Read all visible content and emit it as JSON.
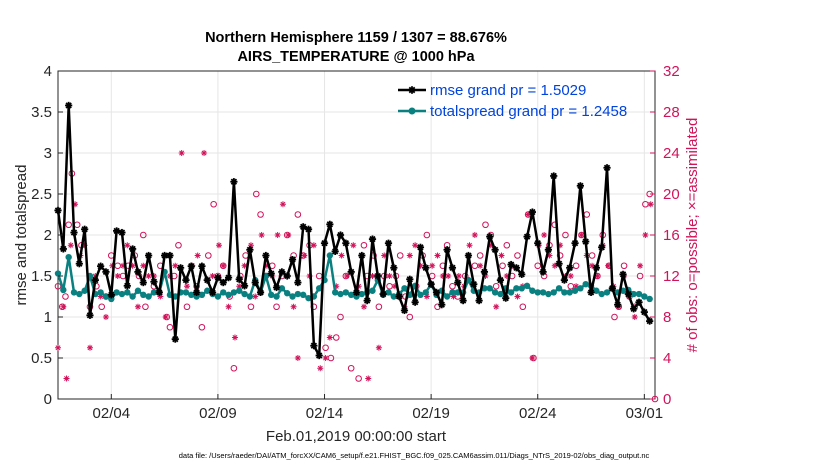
{
  "chart_data": {
    "type": "line",
    "title_line1": "Northern Hemisphere 1159 / 1307 = 88.676%",
    "title_line2": "AIRS_TEMPERATURE @ 1000 hPa",
    "xlabel": "Feb.01,2019 00:00:00 start",
    "ylabel_left": "rmse and totalspread",
    "ylabel_right": "# of obs: o=possible; ×=assimilated",
    "footnote": "data file: /Users/raeder/DAI/ATM_forcXX/CAM6_setup/f.e21.FHIST_BGC.f09_025.CAM6assim.011/Diags_NTrS_2019-02/obs_diag_output.nc",
    "xlim": [
      0.5,
      28.5
    ],
    "ylim_left": [
      0,
      4
    ],
    "ylim_right": [
      0,
      32
    ],
    "x_ticks": [
      {
        "value": 3,
        "label": "02/04"
      },
      {
        "value": 8,
        "label": "02/09"
      },
      {
        "value": 13,
        "label": "02/14"
      },
      {
        "value": 18,
        "label": "02/19"
      },
      {
        "value": 23,
        "label": "02/24"
      },
      {
        "value": 28,
        "label": "03/01"
      }
    ],
    "y_ticks_left": [
      "0",
      "0.5",
      "1",
      "1.5",
      "2",
      "2.5",
      "3",
      "3.5",
      "4"
    ],
    "y_ticks_right": [
      "0",
      "4",
      "8",
      "12",
      "16",
      "20",
      "24",
      "28",
      "32"
    ],
    "legend": [
      {
        "name": "rmse grand pr = 1.5029",
        "color": "#000000"
      },
      {
        "name": "totalspread grand pr = 1.2458",
        "color": "#0a8080"
      }
    ],
    "series": [
      {
        "name": "rmse",
        "color": "#000000",
        "x_start": 0.5,
        "x_step": 0.25,
        "values": [
          2.3,
          1.83,
          3.58,
          2.03,
          1.65,
          2.07,
          1.02,
          1.45,
          1.62,
          1.55,
          1.27,
          2.05,
          2.03,
          1.38,
          1.83,
          1.55,
          1.42,
          1.75,
          1.43,
          1.3,
          1.75,
          1.75,
          0.73,
          1.6,
          1.45,
          1.62,
          1.3,
          1.62,
          1.45,
          1.3,
          1.48,
          1.42,
          1.48,
          2.65,
          1.46,
          1.38,
          1.82,
          1.42,
          1.3,
          1.75,
          1.53,
          1.36,
          1.55,
          1.5,
          1.7,
          1.42,
          2.1,
          2.07,
          0.65,
          0.53,
          1.9,
          2.13,
          1.8,
          2.0,
          1.9,
          1.55,
          1.3,
          1.75,
          1.2,
          1.95,
          1.5,
          1.28,
          1.9,
          1.6,
          1.25,
          1.08,
          1.46,
          1.18,
          1.85,
          1.6,
          1.4,
          1.3,
          1.15,
          1.82,
          1.6,
          1.42,
          1.2,
          1.75,
          1.4,
          1.2,
          1.55,
          1.98,
          1.82,
          1.45,
          1.23,
          1.64,
          1.6,
          1.52,
          1.98,
          2.28,
          1.9,
          1.55,
          1.82,
          2.72,
          1.65,
          1.45,
          1.6,
          1.9,
          2.6,
          1.92,
          1.3,
          1.6,
          1.85,
          2.82,
          1.35,
          1.15,
          1.52,
          1.28,
          1.1,
          1.18,
          1.06,
          0.95
        ]
      },
      {
        "name": "totalspread",
        "color": "#0a8080",
        "x_start": 0.5,
        "x_step": 0.25,
        "values": [
          1.53,
          1.33,
          1.73,
          1.3,
          1.28,
          1.32,
          1.5,
          1.28,
          1.3,
          1.25,
          1.22,
          1.3,
          1.28,
          1.3,
          1.25,
          1.32,
          1.27,
          1.25,
          1.3,
          1.3,
          1.55,
          1.27,
          1.25,
          1.3,
          1.3,
          1.27,
          1.25,
          1.27,
          1.32,
          1.28,
          1.25,
          1.3,
          1.27,
          1.3,
          1.32,
          1.28,
          1.25,
          1.45,
          1.3,
          1.5,
          1.27,
          1.25,
          1.35,
          1.29,
          1.25,
          1.28,
          1.27,
          1.23,
          1.25,
          1.35,
          1.45,
          1.75,
          1.3,
          1.28,
          1.3,
          1.27,
          1.25,
          1.28,
          1.3,
          1.32,
          1.45,
          1.27,
          1.3,
          1.25,
          1.28,
          1.35,
          1.27,
          1.38,
          1.27,
          1.3,
          1.4,
          1.27,
          1.32,
          1.25,
          1.3,
          1.3,
          1.3,
          1.45,
          1.32,
          1.3,
          1.35,
          1.35,
          1.3,
          1.28,
          1.35,
          1.3,
          1.35,
          1.35,
          1.38,
          1.32,
          1.3,
          1.3,
          1.28,
          1.3,
          1.35,
          1.3,
          1.3,
          1.32,
          1.35,
          1.4,
          1.38,
          1.32,
          1.28,
          1.3,
          1.35,
          1.3,
          1.32,
          1.33,
          1.28,
          1.28,
          1.25,
          1.22
        ]
      }
    ],
    "obs_possible": [
      [
        0.5,
        11
      ],
      [
        0.7,
        9
      ],
      [
        0.85,
        10
      ],
      [
        1.0,
        17
      ],
      [
        1.15,
        22
      ],
      [
        1.4,
        17
      ],
      [
        1.6,
        15
      ],
      [
        2.0,
        9
      ],
      [
        2.3,
        11
      ],
      [
        2.55,
        9
      ],
      [
        2.75,
        10
      ],
      [
        3.0,
        14
      ],
      [
        3.3,
        13
      ],
      [
        3.55,
        12
      ],
      [
        3.8,
        13
      ],
      [
        4.1,
        14
      ],
      [
        4.3,
        12
      ],
      [
        4.5,
        16
      ],
      [
        4.6,
        9
      ],
      [
        5.0,
        11
      ],
      [
        5.3,
        13
      ],
      [
        5.6,
        8
      ],
      [
        5.75,
        7
      ],
      [
        5.95,
        12
      ],
      [
        6.15,
        15
      ],
      [
        6.55,
        9
      ],
      [
        7.0,
        11
      ],
      [
        7.25,
        7
      ],
      [
        7.55,
        14
      ],
      [
        7.8,
        19
      ],
      [
        8.0,
        12
      ],
      [
        8.25,
        13
      ],
      [
        8.55,
        10
      ],
      [
        8.75,
        3
      ],
      [
        9.05,
        12
      ],
      [
        9.3,
        14
      ],
      [
        9.55,
        9
      ],
      [
        9.8,
        20
      ],
      [
        10.0,
        18
      ],
      [
        10.25,
        12
      ],
      [
        10.55,
        13
      ],
      [
        10.75,
        9
      ],
      [
        11.0,
        12
      ],
      [
        11.25,
        16
      ],
      [
        11.55,
        14
      ],
      [
        11.75,
        18
      ],
      [
        12.0,
        14
      ],
      [
        12.3,
        15
      ],
      [
        12.5,
        9
      ],
      [
        12.75,
        12
      ],
      [
        13.05,
        5
      ],
      [
        13.3,
        4
      ],
      [
        13.55,
        6
      ],
      [
        13.75,
        8
      ],
      [
        14.0,
        12
      ],
      [
        14.25,
        3
      ],
      [
        14.6,
        2
      ],
      [
        14.85,
        15
      ],
      [
        15.0,
        12
      ],
      [
        15.3,
        14
      ],
      [
        15.55,
        9
      ],
      [
        15.8,
        12
      ],
      [
        16.05,
        11
      ],
      [
        16.35,
        12
      ],
      [
        16.55,
        14
      ],
      [
        16.8,
        10
      ],
      [
        17.0,
        8
      ],
      [
        17.3,
        11
      ],
      [
        17.6,
        14
      ],
      [
        17.8,
        16
      ],
      [
        18.05,
        12
      ],
      [
        18.3,
        9
      ],
      [
        18.55,
        13
      ],
      [
        18.75,
        15
      ],
      [
        19.0,
        11
      ],
      [
        19.25,
        10
      ],
      [
        19.6,
        12
      ],
      [
        20.05,
        13
      ],
      [
        20.3,
        14
      ],
      [
        20.55,
        17
      ],
      [
        20.8,
        16
      ],
      [
        21.05,
        11
      ],
      [
        21.35,
        13
      ],
      [
        21.55,
        15
      ],
      [
        21.8,
        12
      ],
      [
        22.05,
        14
      ],
      [
        22.3,
        9
      ],
      [
        22.55,
        18
      ],
      [
        22.8,
        4
      ],
      [
        23.0,
        13
      ],
      [
        23.3,
        12
      ],
      [
        23.55,
        15
      ],
      [
        23.8,
        17
      ],
      [
        24.05,
        14
      ],
      [
        24.3,
        16
      ],
      [
        24.55,
        11
      ],
      [
        24.8,
        13
      ],
      [
        25.05,
        16
      ],
      [
        25.3,
        18
      ],
      [
        25.55,
        14
      ],
      [
        25.8,
        12
      ],
      [
        26.05,
        16
      ],
      [
        26.35,
        13
      ],
      [
        26.6,
        8
      ],
      [
        26.8,
        9
      ],
      [
        27.05,
        13
      ],
      [
        27.3,
        10
      ],
      [
        27.55,
        9
      ],
      [
        27.8,
        12
      ],
      [
        28.05,
        19
      ],
      [
        28.25,
        20
      ],
      [
        28.5,
        0
      ]
    ],
    "obs_assimilated": [
      [
        0.5,
        5
      ],
      [
        0.75,
        9
      ],
      [
        0.9,
        2
      ],
      [
        1.1,
        15
      ],
      [
        1.3,
        19
      ],
      [
        1.55,
        14
      ],
      [
        1.75,
        15
      ],
      [
        2.0,
        5
      ],
      [
        2.25,
        12
      ],
      [
        2.5,
        10
      ],
      [
        2.75,
        8
      ],
      [
        3.05,
        13
      ],
      [
        3.3,
        12
      ],
      [
        3.55,
        13
      ],
      [
        3.75,
        15
      ],
      [
        4.0,
        13
      ],
      [
        4.25,
        9
      ],
      [
        4.5,
        13
      ],
      [
        4.75,
        12
      ],
      [
        5.0,
        12
      ],
      [
        5.3,
        10
      ],
      [
        5.55,
        8
      ],
      [
        5.75,
        12
      ],
      [
        6.0,
        13
      ],
      [
        6.3,
        24
      ],
      [
        6.55,
        11
      ],
      [
        6.8,
        13
      ],
      [
        7.05,
        14
      ],
      [
        7.35,
        24
      ],
      [
        7.75,
        12
      ],
      [
        8.05,
        15
      ],
      [
        8.25,
        13
      ],
      [
        8.5,
        9
      ],
      [
        8.8,
        6
      ],
      [
        9.0,
        11
      ],
      [
        9.25,
        13
      ],
      [
        9.55,
        15
      ],
      [
        9.75,
        10
      ],
      [
        10.05,
        16
      ],
      [
        10.3,
        13
      ],
      [
        10.55,
        12
      ],
      [
        10.8,
        16
      ],
      [
        11.05,
        19
      ],
      [
        11.3,
        16
      ],
      [
        11.55,
        9
      ],
      [
        11.75,
        4
      ],
      [
        12.05,
        14
      ],
      [
        12.3,
        12
      ],
      [
        12.5,
        15
      ],
      [
        12.8,
        3
      ],
      [
        13.05,
        4
      ],
      [
        13.25,
        6
      ],
      [
        13.55,
        11
      ],
      [
        13.8,
        14
      ],
      [
        14.05,
        12
      ],
      [
        14.35,
        15
      ],
      [
        14.6,
        11
      ],
      [
        14.85,
        9
      ],
      [
        15.05,
        2
      ],
      [
        15.25,
        12
      ],
      [
        15.55,
        5
      ],
      [
        15.8,
        14
      ],
      [
        16.05,
        12
      ],
      [
        16.3,
        11
      ],
      [
        16.55,
        10
      ],
      [
        16.75,
        9
      ],
      [
        17.0,
        14
      ],
      [
        17.25,
        15
      ],
      [
        17.5,
        13
      ],
      [
        17.8,
        10
      ],
      [
        18.05,
        13
      ],
      [
        18.3,
        14
      ],
      [
        18.55,
        12
      ],
      [
        18.8,
        12
      ],
      [
        19.05,
        10
      ],
      [
        19.3,
        12
      ],
      [
        19.55,
        11
      ],
      [
        19.8,
        15
      ],
      [
        20.05,
        16
      ],
      [
        20.3,
        13
      ],
      [
        20.55,
        12
      ],
      [
        20.8,
        15
      ],
      [
        21.05,
        9
      ],
      [
        21.3,
        14
      ],
      [
        21.55,
        12
      ],
      [
        21.8,
        13
      ],
      [
        22.05,
        10
      ],
      [
        22.3,
        11
      ],
      [
        22.55,
        18
      ],
      [
        22.75,
        4
      ],
      [
        23.05,
        15
      ],
      [
        23.3,
        16
      ],
      [
        23.55,
        14
      ],
      [
        23.8,
        13
      ],
      [
        24.05,
        15
      ],
      [
        24.3,
        12
      ],
      [
        24.55,
        12
      ],
      [
        24.8,
        11
      ],
      [
        25.05,
        16
      ],
      [
        25.3,
        14
      ],
      [
        25.55,
        13
      ],
      [
        25.8,
        12
      ],
      [
        26.05,
        15
      ],
      [
        26.3,
        13
      ],
      [
        26.55,
        11
      ],
      [
        26.8,
        9
      ],
      [
        27.05,
        12
      ],
      [
        27.3,
        10
      ],
      [
        27.55,
        8
      ],
      [
        27.8,
        13
      ],
      [
        28.05,
        16
      ],
      [
        28.3,
        19
      ]
    ]
  }
}
